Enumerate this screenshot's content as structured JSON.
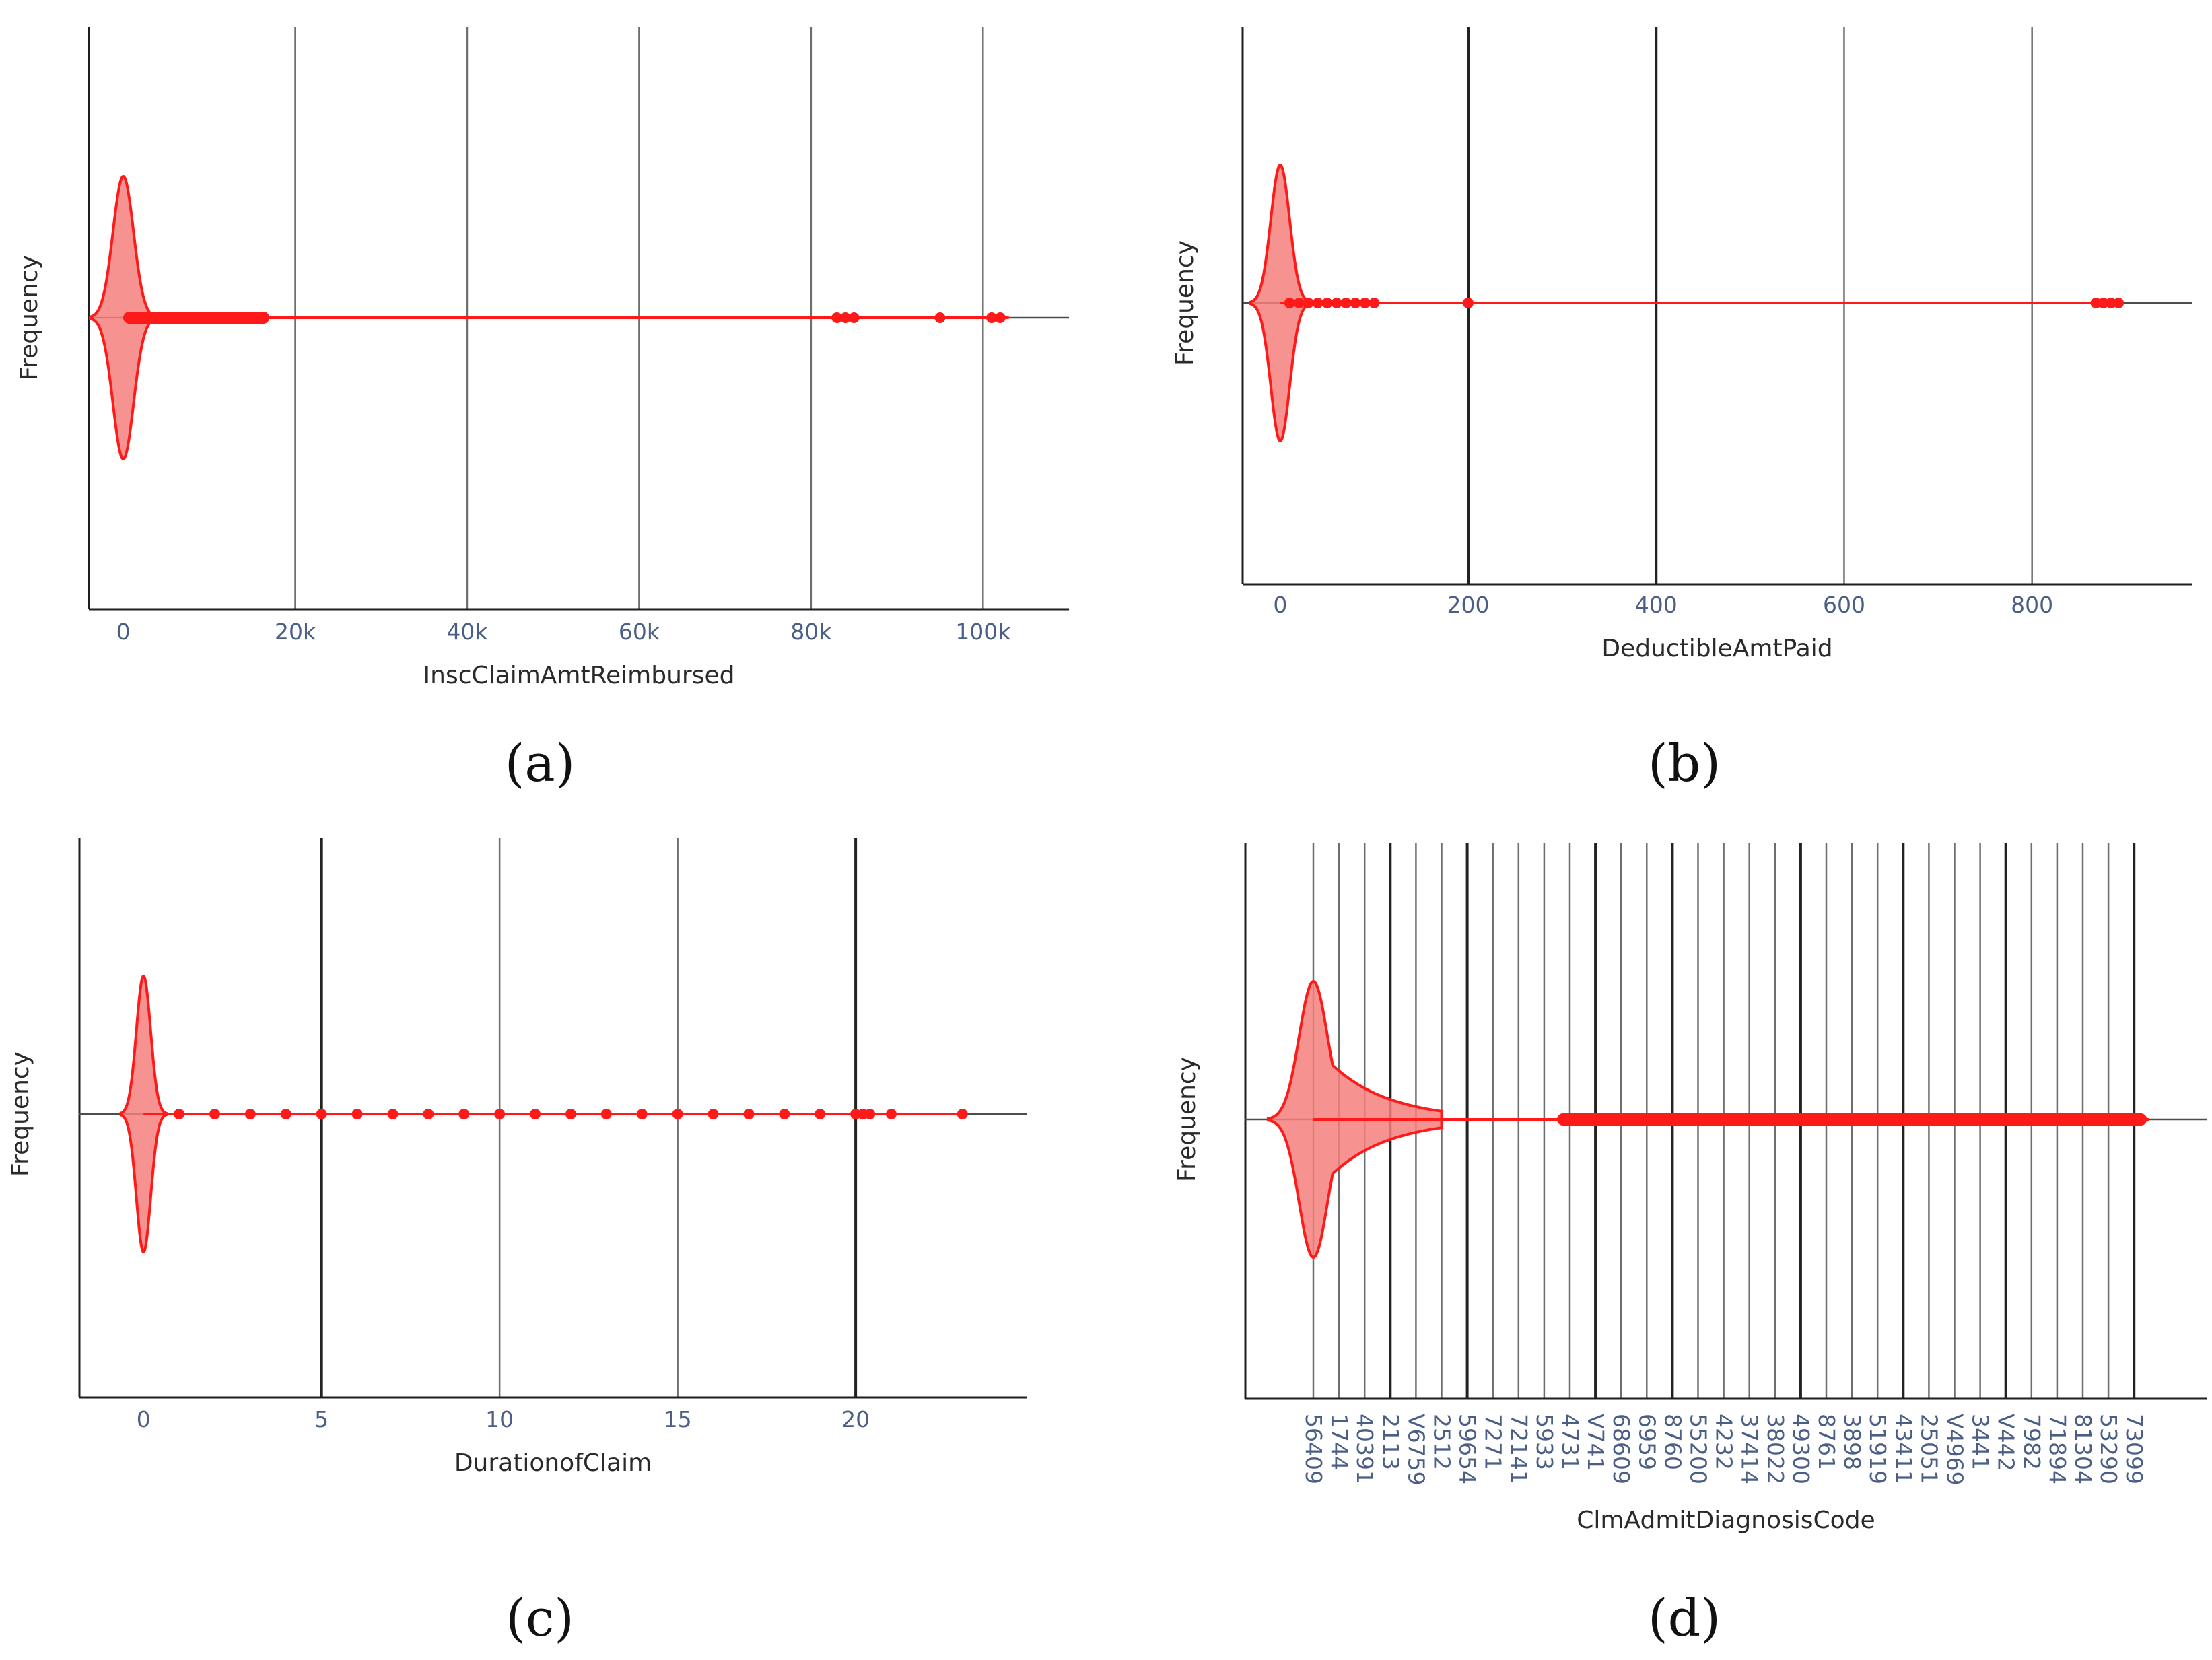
{
  "colors": {
    "violin": "#ff1a1a",
    "violin_fill": "#f4807d",
    "grid": "#6e6e6e",
    "grid_dark": "#222222",
    "tick": "#4a5e86"
  },
  "chart_data": [
    {
      "id": "a",
      "type": "violin",
      "caption": "(a)",
      "xlabel": "InscClaimAmtReimbursed",
      "ylabel": "Frequency",
      "xlim": [
        -4000,
        110000
      ],
      "tick_values": [
        0,
        20000,
        40000,
        60000,
        80000,
        100000
      ],
      "tick_labels": [
        "0",
        "20k",
        "40k",
        "60k",
        "80k",
        "100k"
      ],
      "dark_gridlines": [],
      "peak": 0,
      "spread": 1200,
      "tail": 0,
      "line_end": 103000,
      "dense_points": [
        0,
        17000
      ],
      "outliers": [
        83000,
        84000,
        85000,
        95000,
        101000,
        102000
      ]
    },
    {
      "id": "b",
      "type": "violin",
      "caption": "(b)",
      "xlabel": "DeductibleAmtPaid",
      "ylabel": "Frequency",
      "xlim": [
        -40,
        970
      ],
      "tick_values": [
        0,
        200,
        400,
        600,
        800
      ],
      "tick_labels": [
        "0",
        "200",
        "400",
        "600",
        "800"
      ],
      "dark_gridlines": [
        200,
        400
      ],
      "peak": 0,
      "spread": 10,
      "tail": 0,
      "line_end": 895,
      "dense_points": [],
      "outliers": [
        10,
        20,
        30,
        40,
        50,
        60,
        70,
        80,
        90,
        100,
        200,
        868,
        876,
        884,
        892
      ]
    },
    {
      "id": "c",
      "type": "violin",
      "caption": "(c)",
      "xlabel": "DurationofClaim",
      "ylabel": "Frequency",
      "xlim": [
        -1.8,
        24.8
      ],
      "tick_values": [
        0,
        5,
        10,
        15,
        20
      ],
      "tick_labels": [
        "0",
        "5",
        "10",
        "15",
        "20"
      ],
      "dark_gridlines": [
        5,
        20
      ],
      "peak": 0,
      "spread": 0.2,
      "tail": 0,
      "line_end": 23,
      "dense_points": [],
      "outliers": [
        1,
        2,
        3,
        4,
        5,
        6,
        7,
        8,
        9,
        10,
        11,
        12,
        13,
        14,
        15,
        16,
        17,
        18,
        19,
        20,
        20.2,
        20.4,
        21,
        23
      ]
    },
    {
      "id": "d",
      "type": "violin",
      "caption": "(d)",
      "xlabel": "ClmAdmitDiagnosisCode",
      "ylabel": "Frequency",
      "categories": [
        "56409",
        "1744",
        "40391",
        "2113",
        "V6759",
        "2512",
        "59654",
        "7271",
        "72141",
        "5933",
        "4731",
        "V741",
        "68609",
        "6959",
        "8760",
        "55200",
        "4232",
        "37414",
        "38022",
        "49300",
        "8761",
        "3898",
        "51919",
        "43411",
        "25051",
        "V4969",
        "3441",
        "V442",
        "7982",
        "71894",
        "81304",
        "53290",
        "73099"
      ],
      "dark_gridlines": [
        "2113",
        "59654",
        "V741",
        "8760",
        "49300",
        "43411",
        "V442",
        "73099"
      ],
      "peak": 0,
      "spread": 0.55,
      "tail": 5,
      "line_end": 32.6,
      "dense_points": [
        9.5,
        32.5
      ],
      "outliers": []
    }
  ]
}
